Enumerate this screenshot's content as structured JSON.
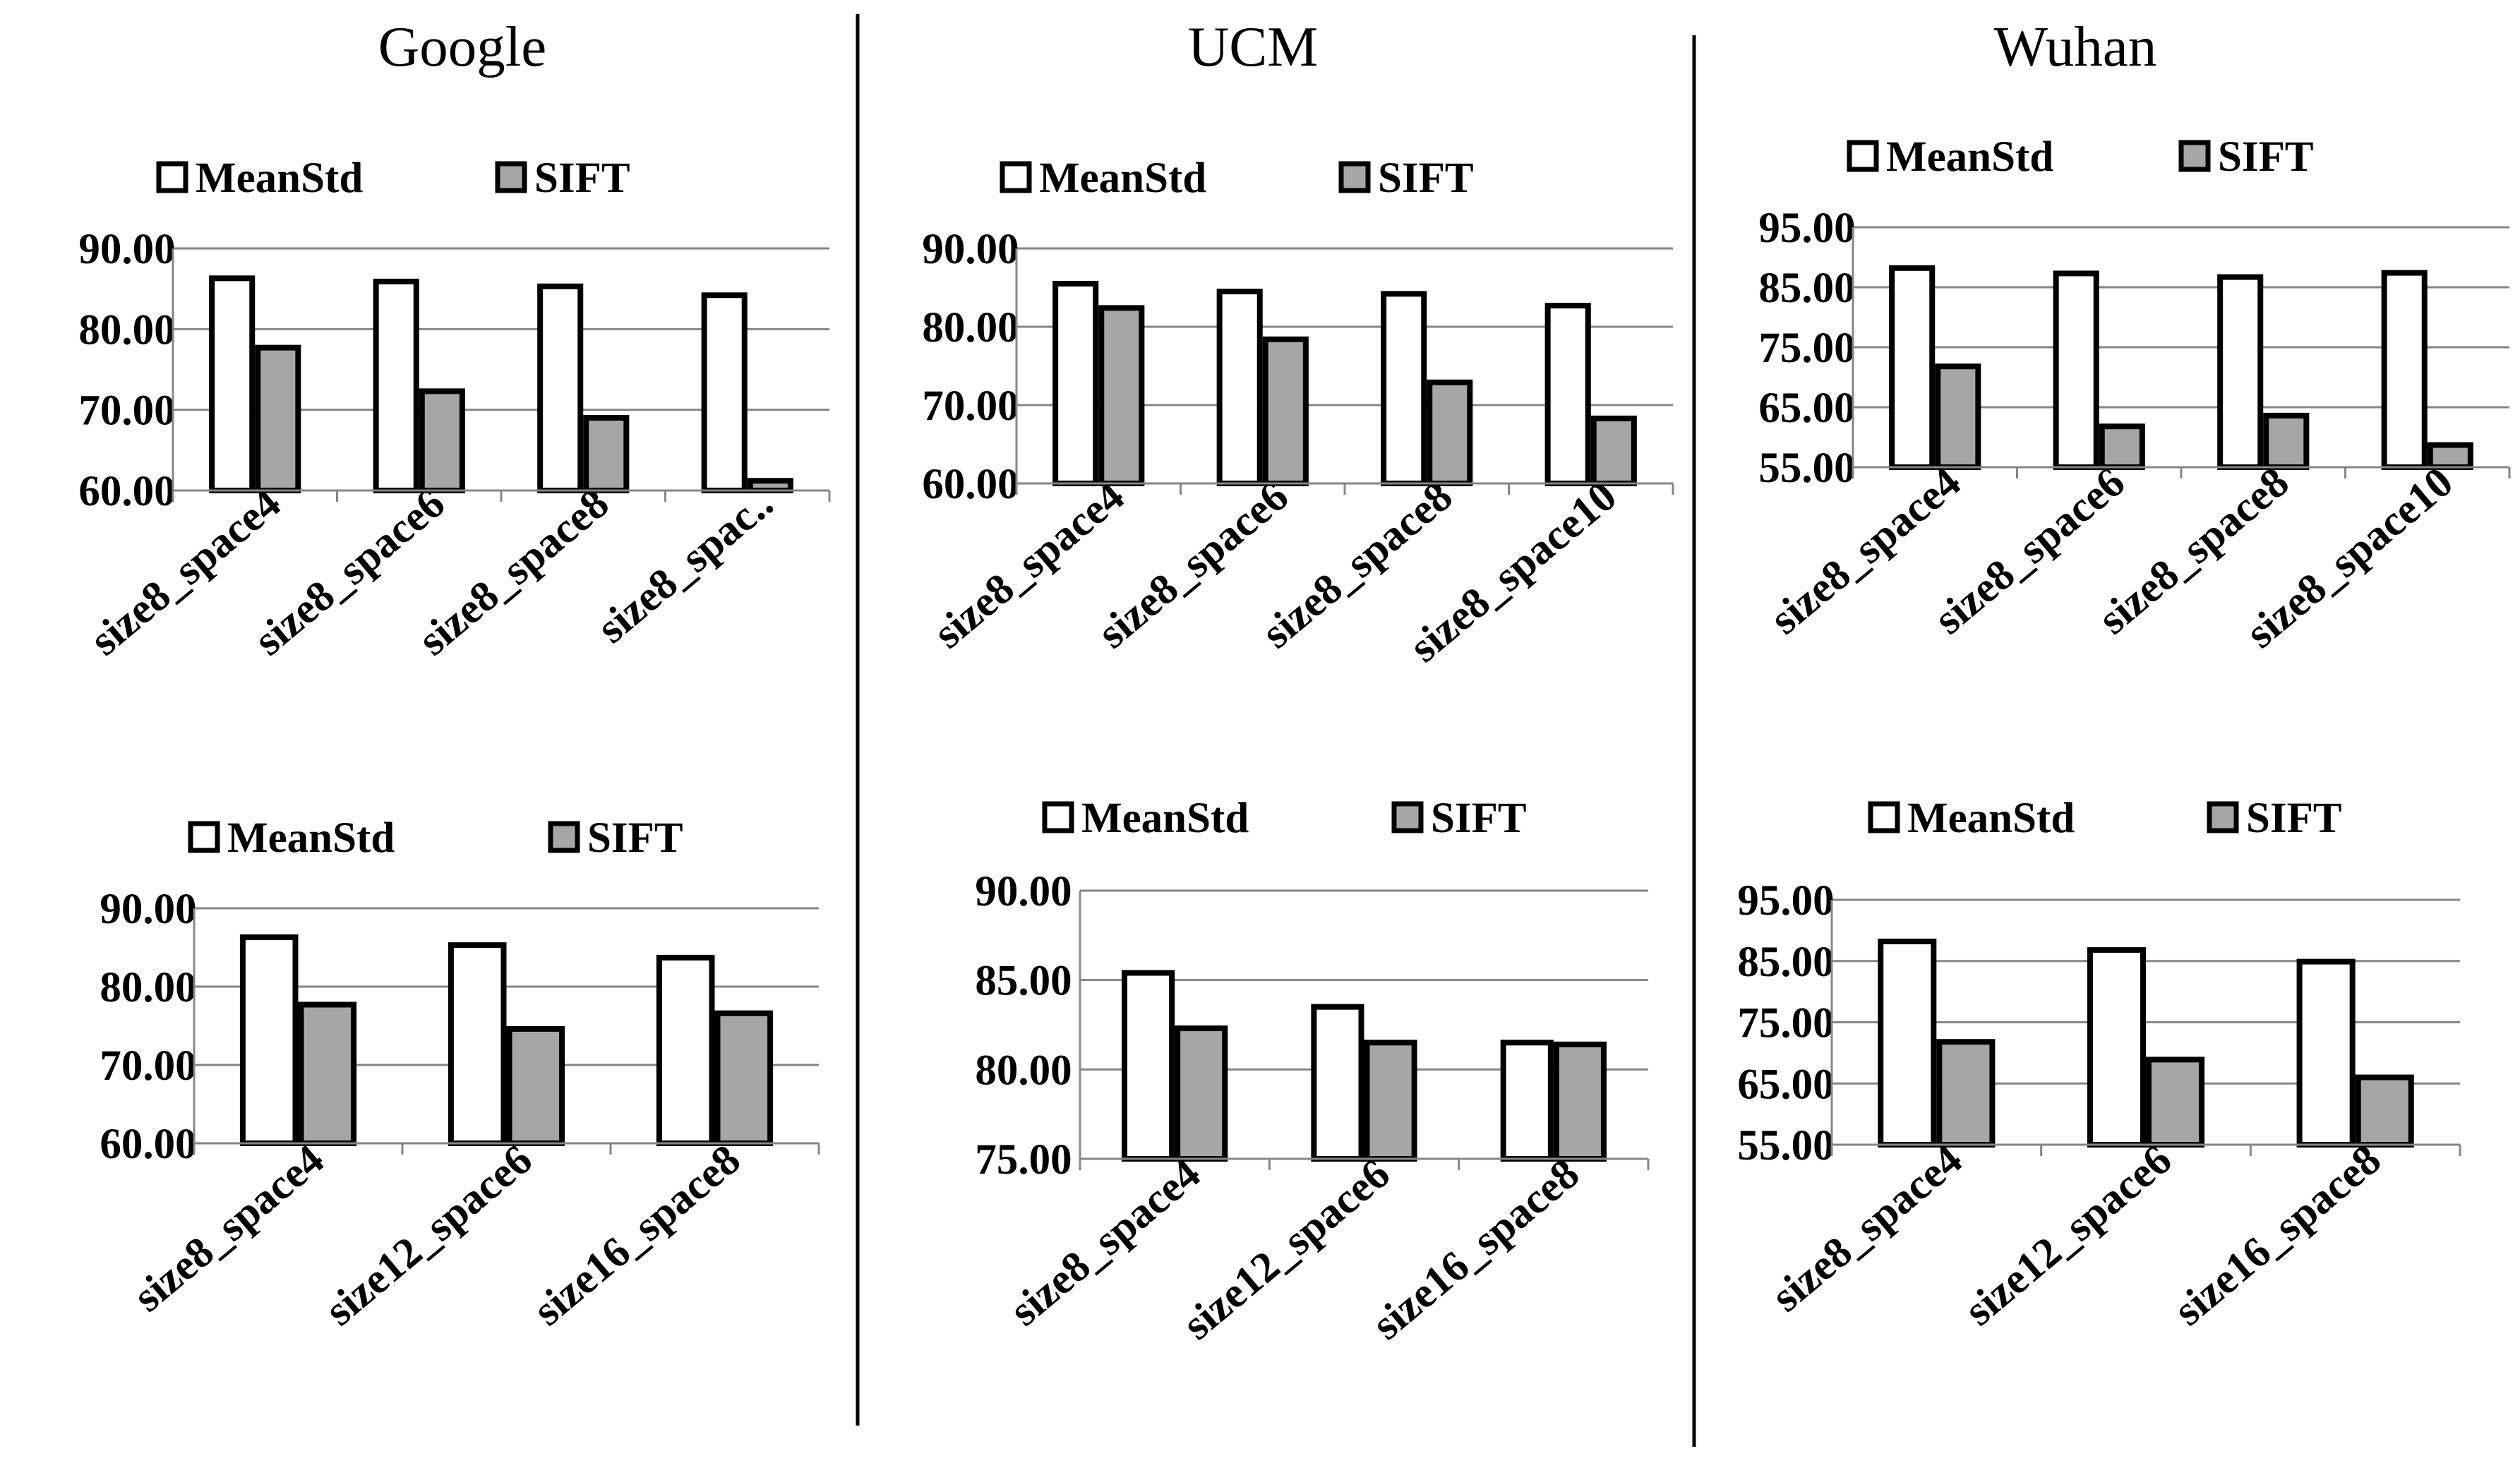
{
  "figure": {
    "column_titles": [
      "Google",
      "UCM",
      "Wuhan"
    ],
    "legend": [
      "MeanStd",
      "SIFT"
    ],
    "colors": {
      "MeanStd": "#ffffff",
      "SIFT": "#a6a6a6",
      "outline": "#000000",
      "grid": "#868686",
      "divider": "#000000"
    }
  },
  "chart_data": [
    {
      "id": "google-spacing",
      "type": "bar",
      "dataset": "Google",
      "categories": [
        "size8_space4",
        "size8_space6",
        "size8_space8",
        "size8_spac.."
      ],
      "series": [
        {
          "name": "MeanStd",
          "values": [
            86.3,
            85.9,
            85.3,
            84.2
          ]
        },
        {
          "name": "SIFT",
          "values": [
            77.7,
            72.3,
            69.0,
            61.2
          ]
        }
      ],
      "yticks": [
        "60.00",
        "70.00",
        "80.00",
        "90.00"
      ],
      "ylim": [
        60,
        90
      ],
      "grid": true,
      "legend": "top"
    },
    {
      "id": "ucm-spacing",
      "type": "bar",
      "dataset": "UCM",
      "categories": [
        "size8_space4",
        "size8_space6",
        "size8_space8",
        "size8_space10"
      ],
      "series": [
        {
          "name": "MeanStd",
          "values": [
            85.5,
            84.5,
            84.2,
            82.7
          ]
        },
        {
          "name": "SIFT",
          "values": [
            82.4,
            78.4,
            72.9,
            68.3
          ]
        }
      ],
      "yticks": [
        "60.00",
        "70.00",
        "80.00",
        "90.00"
      ],
      "ylim": [
        60,
        90
      ],
      "grid": true,
      "legend": "top"
    },
    {
      "id": "wuhan-spacing",
      "type": "bar",
      "dataset": "Wuhan",
      "categories": [
        "size8_space4",
        "size8_space6",
        "size8_space8",
        "size8_space10"
      ],
      "series": [
        {
          "name": "MeanStd",
          "values": [
            88.2,
            87.3,
            86.7,
            87.4
          ]
        },
        {
          "name": "SIFT",
          "values": [
            71.8,
            61.8,
            63.6,
            58.7
          ]
        }
      ],
      "yticks": [
        "55.00",
        "65.00",
        "75.00",
        "85.00",
        "95.00"
      ],
      "ylim": [
        55,
        95
      ],
      "grid": true,
      "legend": "top"
    },
    {
      "id": "google-size",
      "type": "bar",
      "dataset": "Google",
      "categories": [
        "size8_space4",
        "size12_space6",
        "size16_space8"
      ],
      "series": [
        {
          "name": "MeanStd",
          "values": [
            86.3,
            85.3,
            83.7
          ]
        },
        {
          "name": "SIFT",
          "values": [
            77.7,
            74.6,
            76.6
          ]
        }
      ],
      "yticks": [
        "60.00",
        "70.00",
        "80.00",
        "90.00"
      ],
      "ylim": [
        60,
        90
      ],
      "grid": true,
      "legend": "top"
    },
    {
      "id": "ucm-size",
      "type": "bar",
      "dataset": "UCM",
      "categories": [
        "size8_space4",
        "size12_space6",
        "size16_space8"
      ],
      "series": [
        {
          "name": "MeanStd",
          "values": [
            85.4,
            83.5,
            81.5
          ]
        },
        {
          "name": "SIFT",
          "values": [
            82.3,
            81.5,
            81.4
          ]
        }
      ],
      "yticks": [
        "75.00",
        "80.00",
        "85.00",
        "90.00"
      ],
      "ylim": [
        75,
        90
      ],
      "grid": true,
      "legend": "top"
    },
    {
      "id": "wuhan-size",
      "type": "bar",
      "dataset": "Wuhan",
      "categories": [
        "size8_space4",
        "size12_space6",
        "size16_space8"
      ],
      "series": [
        {
          "name": "MeanStd",
          "values": [
            88.2,
            86.8,
            84.9
          ]
        },
        {
          "name": "SIFT",
          "values": [
            71.8,
            68.9,
            66.0
          ]
        }
      ],
      "yticks": [
        "55.00",
        "65.00",
        "75.00",
        "85.00",
        "95.00"
      ],
      "ylim": [
        55,
        95
      ],
      "grid": true,
      "legend": "top"
    }
  ]
}
